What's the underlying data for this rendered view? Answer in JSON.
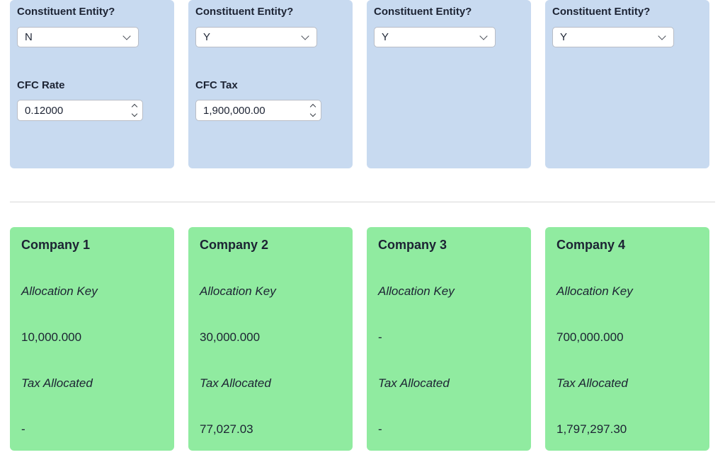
{
  "entity_cards": [
    {
      "label": "Constituent Entity?",
      "value": "N",
      "field_label": "CFC Rate",
      "field_value": "0.12000"
    },
    {
      "label": "Constituent Entity?",
      "value": "Y",
      "field_label": "CFC Tax",
      "field_value": "1,900,000.00"
    },
    {
      "label": "Constituent Entity?",
      "value": "Y"
    },
    {
      "label": "Constituent Entity?",
      "value": "Y"
    }
  ],
  "company_cards": [
    {
      "title": "Company 1",
      "allocation_label": "Allocation Key",
      "allocation_value": "10,000.000",
      "tax_label": "Tax Allocated",
      "tax_value": "-"
    },
    {
      "title": "Company 2",
      "allocation_label": "Allocation Key",
      "allocation_value": "30,000.000",
      "tax_label": "Tax Allocated",
      "tax_value": "77,027.03"
    },
    {
      "title": "Company 3",
      "allocation_label": "Allocation Key",
      "allocation_value": "-",
      "tax_label": "Tax Allocated",
      "tax_value": "-"
    },
    {
      "title": "Company 4",
      "allocation_label": "Allocation Key",
      "allocation_value": "700,000.000",
      "tax_label": "Tax Allocated",
      "tax_value": "1,797,297.30"
    }
  ],
  "colors": {
    "entity_card_bg": "#c8daf0",
    "company_card_bg": "#90eba0"
  }
}
